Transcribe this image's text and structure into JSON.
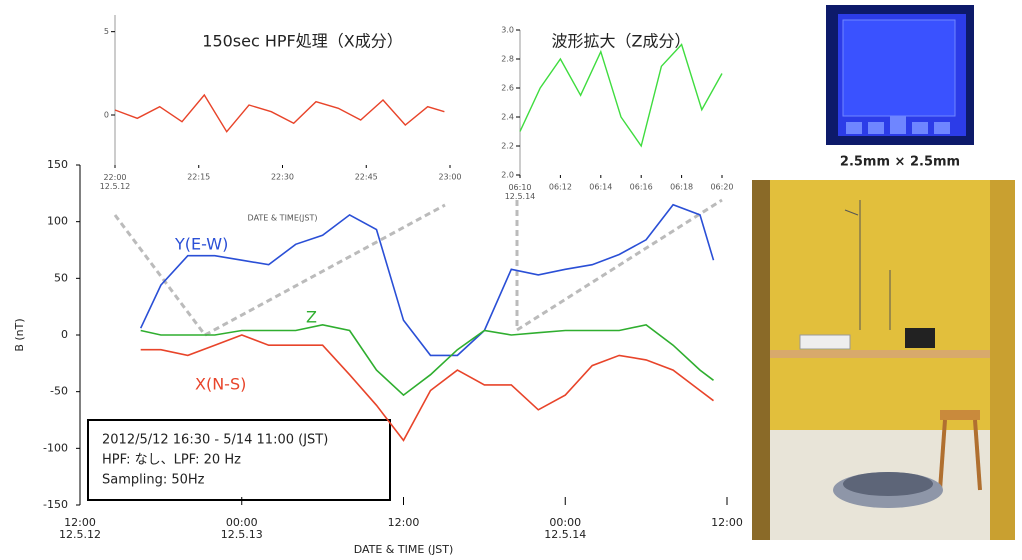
{
  "chart_data": [
    {
      "type": "line",
      "ylabel": "B (nT)",
      "xlabel": "DATE & TIME (JST)",
      "annotation": [
        "2012/5/12 16:30 - 5/14 11:00 (JST)",
        "HPF: なし、LPF: 20 Hz",
        "Sampling: 50Hz"
      ],
      "xlim": [
        "2012-05-12 12:00",
        "2012-05-14 12:00"
      ],
      "xticks": [
        {
          "value": "2012-05-12 12:00",
          "label": "12:00\n12.5.12"
        },
        {
          "value": "2012-05-13 00:00",
          "label": "00:00\n12.5.13"
        },
        {
          "value": "2012-05-13 12:00",
          "label": "12:00"
        },
        {
          "value": "2012-05-14 00:00",
          "label": "00:00\n12.5.14"
        },
        {
          "value": "2012-05-14 12:00",
          "label": "12:00"
        }
      ],
      "ylim": [
        -150,
        150
      ],
      "yticks": [
        -150,
        -100,
        -50,
        0,
        50,
        100,
        150
      ],
      "x": [
        "2012-05-12 16:30",
        "2012-05-12 18:00",
        "2012-05-12 20:00",
        "2012-05-12 22:00",
        "2012-05-13 00:00",
        "2012-05-13 02:00",
        "2012-05-13 04:00",
        "2012-05-13 06:00",
        "2012-05-13 08:00",
        "2012-05-13 10:00",
        "2012-05-13 12:00",
        "2012-05-13 14:00",
        "2012-05-13 16:00",
        "2012-05-13 18:00",
        "2012-05-13 20:00",
        "2012-05-13 22:00",
        "2012-05-14 00:00",
        "2012-05-14 02:00",
        "2012-05-14 04:00",
        "2012-05-14 06:00",
        "2012-05-14 08:00",
        "2012-05-14 10:00",
        "2012-05-14 11:00"
      ],
      "series": [
        {
          "name": "Y(E-W)",
          "color": "#2a4fd6",
          "values": [
            6,
            44,
            70,
            70,
            66,
            62,
            80,
            88,
            106,
            93,
            13,
            -18,
            -18,
            4,
            58,
            53,
            58,
            62,
            71,
            84,
            115,
            106,
            66
          ]
        },
        {
          "name": "Z",
          "color": "#2fae2f",
          "values": [
            4,
            0,
            0,
            0,
            4,
            4,
            4,
            9,
            4,
            -31,
            -53,
            -35,
            -13,
            4,
            0,
            2,
            4,
            4,
            4,
            9,
            -9,
            -31,
            -40
          ]
        },
        {
          "name": "X(N-S)",
          "color": "#e8442a",
          "values": [
            -13,
            -13,
            -18,
            -9,
            0,
            -9,
            -9,
            -9,
            -35,
            -62,
            -93,
            -49,
            -31,
            -44,
            -44,
            -66,
            -53,
            -27,
            -18,
            -22,
            -31,
            -49,
            -58
          ]
        }
      ]
    },
    {
      "type": "line",
      "title": "150sec HPF処理（X成分）",
      "xlabel": "DATE & TIME(JST)",
      "xlim": [
        "22:00",
        "23:00"
      ],
      "xticks": [
        {
          "value": "22:00",
          "label": "22:00\n12.5.12"
        },
        "22:15",
        "22:30",
        "22:45",
        "23:00"
      ],
      "ylim": [
        -3,
        6
      ],
      "yticks": [
        0,
        5
      ],
      "x": [
        "22:00",
        "22:04",
        "22:08",
        "22:12",
        "22:16",
        "22:20",
        "22:24",
        "22:28",
        "22:32",
        "22:36",
        "22:40",
        "22:44",
        "22:48",
        "22:52",
        "22:56",
        "22:59"
      ],
      "series": [
        {
          "color": "#e8442a",
          "values": [
            0.3,
            -0.2,
            0.5,
            -0.4,
            1.2,
            -1.0,
            0.6,
            0.2,
            -0.5,
            0.8,
            0.4,
            -0.3,
            0.9,
            -0.6,
            0.5,
            0.2
          ]
        }
      ]
    },
    {
      "type": "line",
      "title": "波形拡大（Z成分）",
      "xlim": [
        "06:10",
        "06:20"
      ],
      "xticks": [
        {
          "value": "06:10",
          "label": "06:10\n12.5.14"
        },
        "06:12",
        "06:14",
        "06:16",
        "06:18",
        "06:20"
      ],
      "ylim": [
        2.0,
        3.0
      ],
      "yticks": [
        {
          "value": 2.0,
          "label": "2.0"
        },
        2.2,
        2.4,
        2.6,
        2.8,
        {
          "value": 3.0,
          "label": "3.0"
        }
      ],
      "x": [
        "06:10",
        "06:11",
        "06:12",
        "06:13",
        "06:14",
        "06:15",
        "06:16",
        "06:17",
        "06:18",
        "06:19",
        "06:20"
      ],
      "series": [
        {
          "color": "#3fdc3f",
          "values": [
            2.3,
            2.6,
            2.8,
            2.55,
            2.85,
            2.4,
            2.2,
            2.75,
            2.9,
            2.45,
            2.7
          ]
        }
      ]
    }
  ],
  "photo_caption": "2.5mm × 2.5mm"
}
